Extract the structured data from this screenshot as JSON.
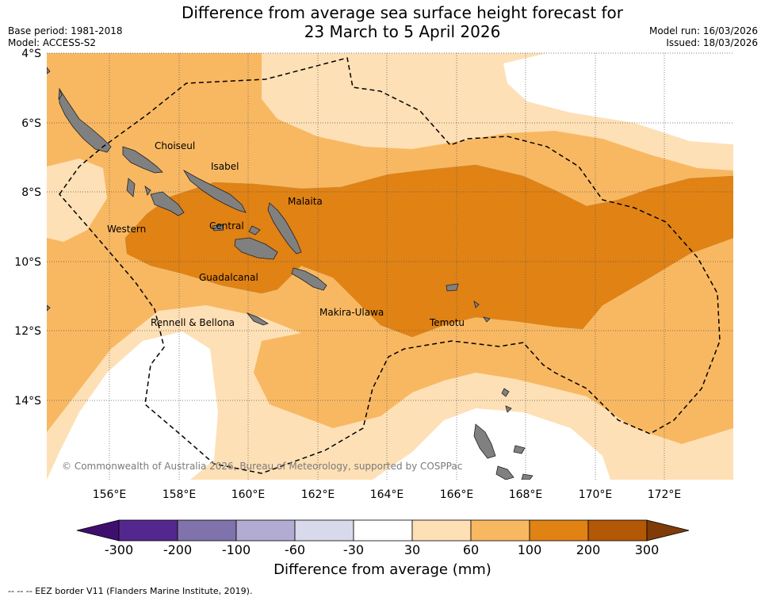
{
  "title_line1": "Difference from average sea surface height forecast for",
  "title_line2": "23 March to 5 April 2026",
  "meta_left": [
    "Base period: 1981-2018",
    "Model: ACCESS-S2"
  ],
  "meta_right": [
    "Model run: 16/03/2026",
    "Issued: 18/03/2026"
  ],
  "lat_labels": [
    "4°S",
    "6°S",
    "8°S",
    "10°S",
    "12°S",
    "14°S"
  ],
  "lon_labels": [
    "156°E",
    "158°E",
    "160°E",
    "162°E",
    "164°E",
    "166°E",
    "168°E",
    "170°E",
    "172°E"
  ],
  "provinces": [
    "Choiseul",
    "Isabel",
    "Malaita",
    "Western",
    "Central",
    "Guadalcanal",
    "Makira-Ulawa",
    "Rennell & Bellona",
    "Temotu"
  ],
  "copyright": "© Commonwealth of Australia 2026, Bureau of Meteorology, supported by COSPPac",
  "colorbar": {
    "label": "Difference from average (mm)",
    "ticks": [
      "-300",
      "-200",
      "-100",
      "-60",
      "-30",
      "30",
      "60",
      "100",
      "200",
      "300"
    ],
    "colors": [
      "#3f0f6e",
      "#54278f",
      "#8073ac",
      "#b2abd2",
      "#d8daeb",
      "#ffffff",
      "#fee0b6",
      "#f8b862",
      "#e08214",
      "#b35806",
      "#7f3b08"
    ]
  },
  "footnote": "--  --  -- EEZ border V11 (Flanders Marine Institute, 2019)."
}
